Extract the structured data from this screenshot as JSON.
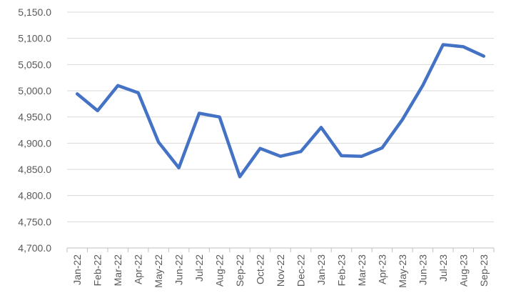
{
  "chart_data": {
    "type": "line",
    "title": "",
    "xlabel": "",
    "ylabel": "",
    "categories": [
      "Jan-22",
      "Feb-22",
      "Mar-22",
      "Apr-22",
      "May-22",
      "Jun-22",
      "Jul-22",
      "Aug-22",
      "Sep-22",
      "Oct-22",
      "Nov-22",
      "Dec-22",
      "Jan-23",
      "Feb-23",
      "Mar-23",
      "Apr-23",
      "May-23",
      "Jun-23",
      "Jul-23",
      "Aug-23",
      "Sep-23"
    ],
    "series": [
      {
        "values": [
          4994,
          4962,
          5010,
          4996,
          4902,
          4853,
          4957,
          4950,
          4836,
          4890,
          4875,
          4884,
          4930,
          4876,
          4875,
          4891,
          4945,
          5010,
          5088,
          5084,
          5066
        ],
        "color": "#4472c4"
      }
    ],
    "ylim": [
      4700,
      5150
    ],
    "yticks": [
      4700,
      4750,
      4800,
      4850,
      4900,
      4950,
      5000,
      5050,
      5100,
      5150
    ],
    "ytick_labels": [
      "4,700.0",
      "4,750.0",
      "4,800.0",
      "4,850.0",
      "4,900.0",
      "4,950.0",
      "5,000.0",
      "5,050.0",
      "5,100.0",
      "5,150.0"
    ],
    "grid": true,
    "legend": "none"
  }
}
